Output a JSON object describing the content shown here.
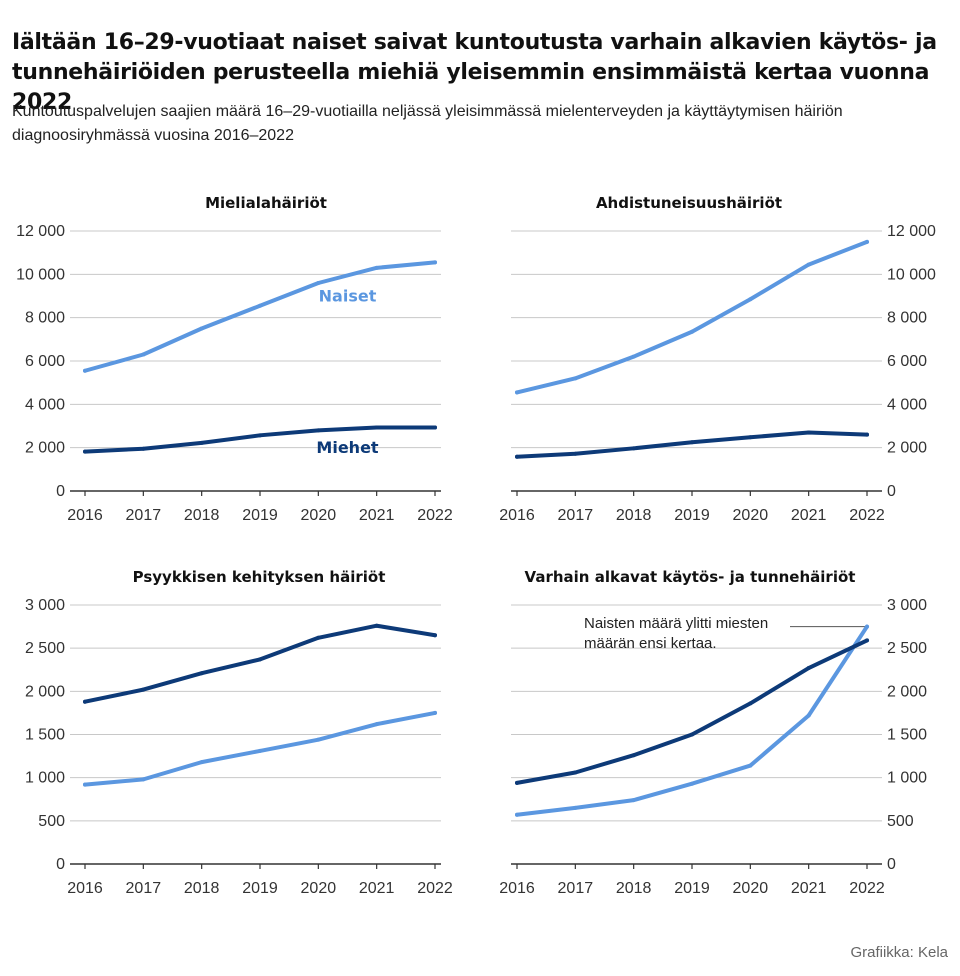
{
  "title": "Iältään 16–29-vuotiaat naiset saivat kuntoutusta varhain alkavien käytös- ja tunnehäiriöiden perusteella miehiä yleisemmin ensimmäistä kertaa vuonna 2022",
  "subtitle": "Kuntoutuspalvelujen saajien määrä 16–29-vuotiailla neljässä yleisimmässä mielenterveyden ja käyttäytymisen häiriön diagnoosiryhmässä vuosina 2016–2022",
  "credit": "Grafiikka: Kela",
  "colors": {
    "naiset": "#5b97e0",
    "miehet": "#0d3a78",
    "grid": "#c8c8c8",
    "axis": "#333333"
  },
  "chart_data": [
    {
      "type": "line",
      "title": "Mielialahäiriöt",
      "x": [
        2016,
        2017,
        2018,
        2019,
        2020,
        2021,
        2022
      ],
      "ylim": [
        0,
        12000
      ],
      "yticks": [
        0,
        2000,
        4000,
        6000,
        8000,
        10000,
        12000
      ],
      "ytick_labels": [
        "0",
        "2 000",
        "4 000",
        "6 000",
        "8 000",
        "10 000",
        "12 000"
      ],
      "yaxis_side": "left",
      "series": [
        {
          "name": "Naiset",
          "key": "naiset",
          "values": [
            5550,
            6300,
            7500,
            8550,
            9600,
            10300,
            10550
          ]
        },
        {
          "name": "Miehet",
          "key": "miehet",
          "values": [
            1820,
            1950,
            2220,
            2570,
            2800,
            2930,
            2930
          ]
        }
      ],
      "series_labels": [
        {
          "text": "Naiset",
          "key": "naiset",
          "x": 2020.5,
          "y": 8750
        },
        {
          "text": "Miehet",
          "key": "miehet",
          "x": 2020.5,
          "y": 1750
        }
      ]
    },
    {
      "type": "line",
      "title": "Ahdistuneisuushäiriöt",
      "x": [
        2016,
        2017,
        2018,
        2019,
        2020,
        2021,
        2022
      ],
      "ylim": [
        0,
        12000
      ],
      "yticks": [
        0,
        2000,
        4000,
        6000,
        8000,
        10000,
        12000
      ],
      "ytick_labels": [
        "0",
        "2 000",
        "4 000",
        "6 000",
        "8 000",
        "10 000",
        "12 000"
      ],
      "yaxis_side": "right",
      "series": [
        {
          "name": "Naiset",
          "key": "naiset",
          "values": [
            4550,
            5200,
            6200,
            7350,
            8850,
            10450,
            11500
          ]
        },
        {
          "name": "Miehet",
          "key": "miehet",
          "values": [
            1580,
            1720,
            1970,
            2250,
            2480,
            2700,
            2600
          ]
        }
      ]
    },
    {
      "type": "line",
      "title": "Psyykkisen kehityksen häiriöt",
      "x": [
        2016,
        2017,
        2018,
        2019,
        2020,
        2021,
        2022
      ],
      "ylim": [
        0,
        3000
      ],
      "yticks": [
        0,
        500,
        1000,
        1500,
        2000,
        2500,
        3000
      ],
      "ytick_labels": [
        "0",
        "500",
        "1 000",
        "1 500",
        "2 000",
        "2 500",
        "3 000"
      ],
      "yaxis_side": "left",
      "series": [
        {
          "name": "Naiset",
          "key": "naiset",
          "values": [
            920,
            980,
            1180,
            1310,
            1440,
            1620,
            1750
          ]
        },
        {
          "name": "Miehet",
          "key": "miehet",
          "values": [
            1880,
            2020,
            2210,
            2370,
            2620,
            2760,
            2650
          ]
        }
      ]
    },
    {
      "type": "line",
      "title": "Varhain alkavat käytös- ja tunnehäiriöt",
      "x": [
        2016,
        2017,
        2018,
        2019,
        2020,
        2021,
        2022
      ],
      "ylim": [
        0,
        3000
      ],
      "yticks": [
        0,
        500,
        1000,
        1500,
        2000,
        2500,
        3000
      ],
      "ytick_labels": [
        "0",
        "500",
        "1 000",
        "1 500",
        "2 000",
        "2 500",
        "3 000"
      ],
      "yaxis_side": "right",
      "series": [
        {
          "name": "Naiset",
          "key": "naiset",
          "values": [
            570,
            650,
            740,
            930,
            1140,
            1720,
            2750
          ]
        },
        {
          "name": "Miehet",
          "key": "miehet",
          "values": [
            940,
            1060,
            1260,
            1500,
            1860,
            2270,
            2590
          ]
        }
      ],
      "annotation": {
        "lines": [
          "Naisten määrä ylitti miesten",
          "määrän ensi kertaa."
        ],
        "x": 2022,
        "y": 2750
      }
    }
  ]
}
